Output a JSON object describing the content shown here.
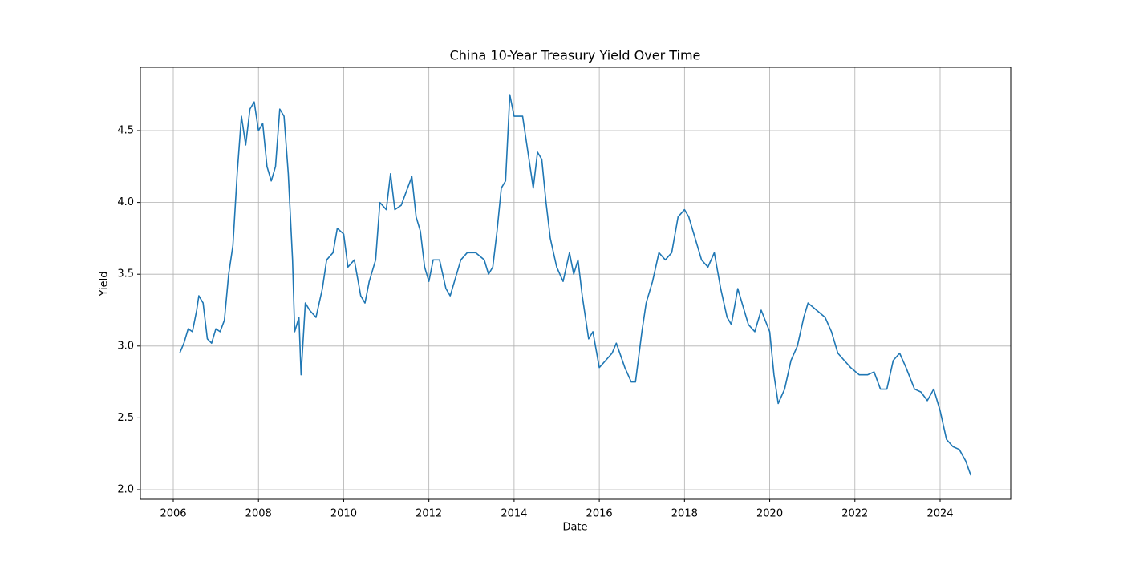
{
  "chart_data": {
    "type": "line",
    "title": "China 10-Year Treasury Yield Over Time",
    "xlabel": "Date",
    "ylabel": "Yield",
    "xlim": [
      2005.228,
      2025.657
    ],
    "xticks": [
      2006,
      2008,
      2010,
      2012,
      2014,
      2016,
      2018,
      2020,
      2022,
      2024
    ],
    "ylim": [
      1.933,
      4.941
    ],
    "yticks": [
      {
        "value": 2,
        "label": "2.0"
      },
      2.5,
      {
        "value": 3,
        "label": "3.0"
      },
      3.5,
      {
        "value": 4,
        "label": "4.0"
      },
      4.5
    ],
    "grid": true,
    "x": [
      2006.15,
      2006.25,
      2006.35,
      2006.45,
      2006.55,
      2006.6,
      2006.7,
      2006.8,
      2006.9,
      2007.0,
      2007.1,
      2007.2,
      2007.3,
      2007.4,
      2007.5,
      2007.6,
      2007.7,
      2007.8,
      2007.9,
      2008.0,
      2008.1,
      2008.2,
      2008.3,
      2008.4,
      2008.5,
      2008.6,
      2008.7,
      2008.8,
      2008.85,
      2008.95,
      2009.0,
      2009.1,
      2009.2,
      2009.35,
      2009.5,
      2009.6,
      2009.75,
      2009.85,
      2010.0,
      2010.1,
      2010.25,
      2010.4,
      2010.5,
      2010.6,
      2010.75,
      2010.85,
      2011.0,
      2011.1,
      2011.2,
      2011.35,
      2011.5,
      2011.6,
      2011.7,
      2011.8,
      2011.9,
      2012.0,
      2012.1,
      2012.25,
      2012.4,
      2012.5,
      2012.6,
      2012.75,
      2012.9,
      2013.1,
      2013.3,
      2013.4,
      2013.5,
      2013.6,
      2013.7,
      2013.8,
      2013.9,
      2014.0,
      2014.2,
      2014.3,
      2014.45,
      2014.55,
      2014.65,
      2014.75,
      2014.85,
      2015.0,
      2015.15,
      2015.3,
      2015.4,
      2015.5,
      2015.6,
      2015.75,
      2015.85,
      2016.0,
      2016.15,
      2016.3,
      2016.4,
      2016.6,
      2016.75,
      2016.85,
      2017.0,
      2017.1,
      2017.25,
      2017.4,
      2017.55,
      2017.7,
      2017.85,
      2018.0,
      2018.1,
      2018.25,
      2018.4,
      2018.55,
      2018.7,
      2018.85,
      2019.0,
      2019.1,
      2019.25,
      2019.4,
      2019.5,
      2019.65,
      2019.8,
      2020.0,
      2020.1,
      2020.2,
      2020.35,
      2020.5,
      2020.65,
      2020.8,
      2020.9,
      2021.1,
      2021.3,
      2021.45,
      2021.6,
      2021.75,
      2021.9,
      2022.1,
      2022.3,
      2022.45,
      2022.6,
      2022.75,
      2022.9,
      2023.05,
      2023.2,
      2023.4,
      2023.55,
      2023.7,
      2023.85,
      2024.0,
      2024.15,
      2024.3,
      2024.45,
      2024.6,
      2024.72
    ],
    "series": [
      {
        "name": "Yield",
        "color": "#1f77b4",
        "values": [
          2.95,
          3.02,
          3.12,
          3.1,
          3.25,
          3.35,
          3.3,
          3.05,
          3.02,
          3.12,
          3.1,
          3.18,
          3.5,
          3.7,
          4.2,
          4.6,
          4.4,
          4.65,
          4.7,
          4.5,
          4.55,
          4.25,
          4.15,
          4.25,
          4.65,
          4.6,
          4.2,
          3.6,
          3.1,
          3.2,
          2.8,
          3.3,
          3.25,
          3.2,
          3.4,
          3.6,
          3.65,
          3.82,
          3.78,
          3.55,
          3.6,
          3.35,
          3.3,
          3.45,
          3.6,
          4.0,
          3.95,
          4.2,
          3.95,
          3.98,
          4.1,
          4.18,
          3.9,
          3.8,
          3.55,
          3.45,
          3.6,
          3.6,
          3.4,
          3.35,
          3.45,
          3.6,
          3.65,
          3.65,
          3.6,
          3.5,
          3.55,
          3.8,
          4.1,
          4.15,
          4.75,
          4.6,
          4.6,
          4.4,
          4.1,
          4.35,
          4.3,
          4.0,
          3.75,
          3.55,
          3.45,
          3.65,
          3.5,
          3.6,
          3.35,
          3.05,
          3.1,
          2.85,
          2.9,
          2.95,
          3.02,
          2.85,
          2.75,
          2.75,
          3.1,
          3.3,
          3.45,
          3.65,
          3.6,
          3.65,
          3.9,
          3.95,
          3.9,
          3.75,
          3.6,
          3.55,
          3.65,
          3.4,
          3.2,
          3.15,
          3.4,
          3.25,
          3.15,
          3.1,
          3.25,
          3.1,
          2.8,
          2.6,
          2.7,
          2.9,
          3.0,
          3.2,
          3.3,
          3.25,
          3.2,
          3.1,
          2.95,
          2.9,
          2.85,
          2.8,
          2.8,
          2.82,
          2.7,
          2.7,
          2.9,
          2.95,
          2.85,
          2.7,
          2.68,
          2.62,
          2.7,
          2.55,
          2.35,
          2.3,
          2.28,
          2.2,
          2.1
        ]
      }
    ]
  }
}
